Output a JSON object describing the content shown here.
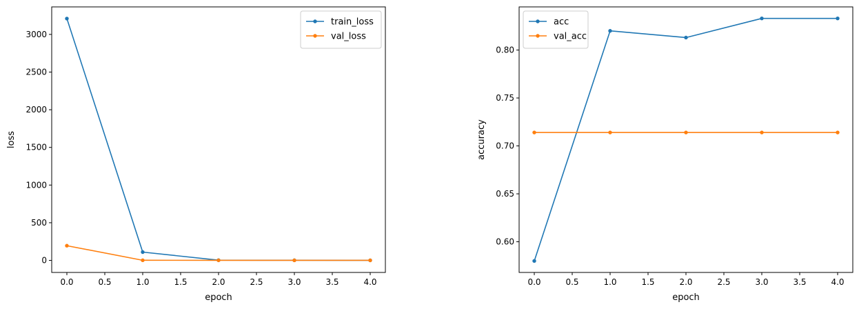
{
  "chart_data": [
    {
      "type": "line",
      "xlabel": "epoch",
      "ylabel": "loss",
      "x": [
        0,
        1,
        2,
        3,
        4
      ],
      "xticks": [
        0.0,
        0.5,
        1.0,
        1.5,
        2.0,
        2.5,
        3.0,
        3.5,
        4.0
      ],
      "xtick_labels": [
        "0.0",
        "0.5",
        "1.0",
        "1.5",
        "2.0",
        "2.5",
        "3.0",
        "3.5",
        "4.0"
      ],
      "xlim": [
        -0.2,
        4.2
      ],
      "yticks": [
        0,
        500,
        1000,
        1500,
        2000,
        2500,
        3000
      ],
      "ytick_labels": [
        "0",
        "500",
        "1000",
        "1500",
        "2000",
        "2500",
        "3000"
      ],
      "ylim": [
        -160,
        3365
      ],
      "legend_position": "top-right",
      "grid": false,
      "series": [
        {
          "name": "train_loss",
          "color": "#1f77b4",
          "values": [
            3210,
            110,
            3,
            1.5,
            1
          ]
        },
        {
          "name": "val_loss",
          "color": "#ff7f0e",
          "values": [
            195,
            1.5,
            1.2,
            1.1,
            1.1
          ]
        }
      ]
    },
    {
      "type": "line",
      "xlabel": "epoch",
      "ylabel": "accuracy",
      "x": [
        0,
        1,
        2,
        3,
        4
      ],
      "xticks": [
        0.0,
        0.5,
        1.0,
        1.5,
        2.0,
        2.5,
        3.0,
        3.5,
        4.0
      ],
      "xtick_labels": [
        "0.0",
        "0.5",
        "1.0",
        "1.5",
        "2.0",
        "2.5",
        "3.0",
        "3.5",
        "4.0"
      ],
      "xlim": [
        -0.2,
        4.2
      ],
      "yticks": [
        0.6,
        0.65,
        0.7,
        0.75,
        0.8
      ],
      "ytick_labels": [
        "0.60",
        "0.65",
        "0.70",
        "0.75",
        "0.80"
      ],
      "ylim": [
        0.568,
        0.845
      ],
      "legend_position": "top-left",
      "grid": false,
      "series": [
        {
          "name": "acc",
          "color": "#1f77b4",
          "values": [
            0.58,
            0.82,
            0.813,
            0.833,
            0.833
          ]
        },
        {
          "name": "val_acc",
          "color": "#ff7f0e",
          "values": [
            0.714,
            0.714,
            0.714,
            0.714,
            0.714
          ]
        }
      ]
    }
  ]
}
